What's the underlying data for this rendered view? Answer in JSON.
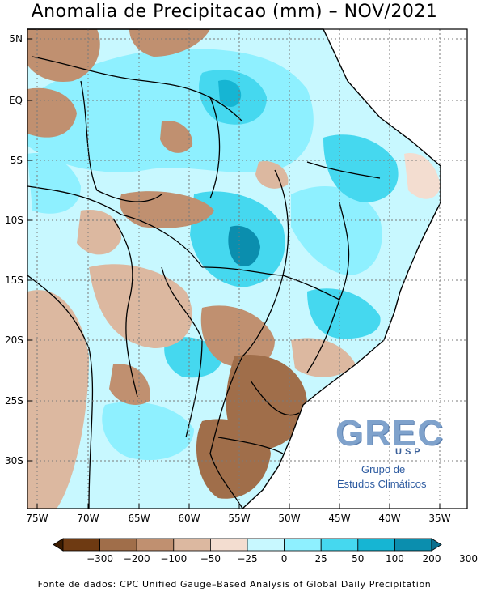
{
  "title": "Anomalia de Precipitacao (mm) – NOV/2021",
  "lat_labels": [
    "5N",
    "EQ",
    "5S",
    "10S",
    "15S",
    "20S",
    "25S",
    "30S"
  ],
  "lon_labels": [
    "75W",
    "70W",
    "65W",
    "60W",
    "55W",
    "50W",
    "45W",
    "40W",
    "35W"
  ],
  "legend": {
    "ticks": [
      "−300",
      "−200",
      "−100",
      "−50",
      "−25",
      "0",
      "25",
      "50",
      "100",
      "200",
      "300"
    ],
    "colors": [
      "#3d1c00",
      "#6e3a12",
      "#a06e4a",
      "#c09070",
      "#dcb8a0",
      "#f3ddd0",
      "#c8f8ff",
      "#8ef0ff",
      "#45d8ef",
      "#16b5d3",
      "#0b8eae",
      "#0a6f8e"
    ]
  },
  "source": "Fonte de dados: CPC Unified Gauge–Based Analysis of Global Daily Precipitation",
  "logo": {
    "main": "GREC",
    "sub": "USP",
    "line1": "Grupo de",
    "line2": "Estudos Climáticos"
  },
  "map_colors": {
    "ocean": "#ffffff",
    "land_base": "#c8f8ff",
    "grid": "#7a7a7a"
  }
}
